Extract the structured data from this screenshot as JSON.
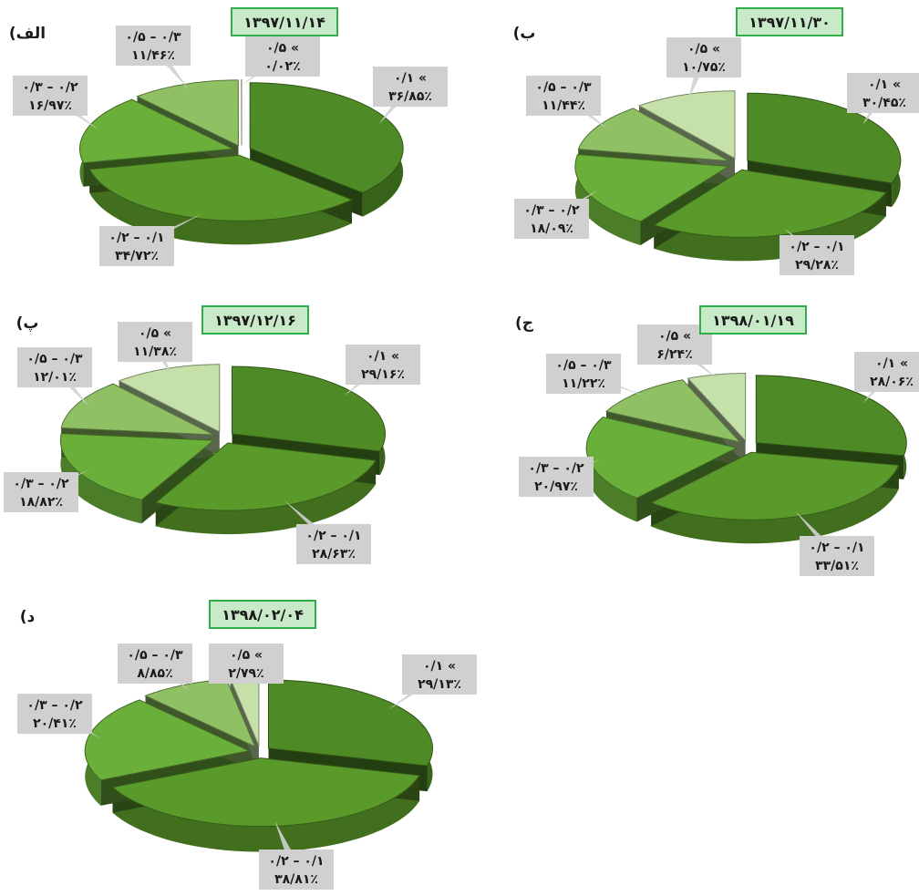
{
  "chart_data": [
    {
      "type": "pie",
      "panel_label": "(الف",
      "date": "۱۳۹۷/۱۱/۱۴",
      "slices": [
        {
          "range": "» ۰/۱",
          "percent": 36.85,
          "label": "۳۶/۸۵٪"
        },
        {
          "range": "۰/۱ – ۰/۲",
          "percent": 34.72,
          "label": "۳۴/۷۲٪"
        },
        {
          "range": "۰/۲ – ۰/۳",
          "percent": 16.97,
          "label": "۱۶/۹۷٪"
        },
        {
          "range": "۰/۳ – ۰/۵",
          "percent": 11.46,
          "label": "۱۱/۴۶٪"
        },
        {
          "range": "» ۰/۵",
          "percent": 0.02,
          "label": "۰/۰۲٪"
        }
      ]
    },
    {
      "type": "pie",
      "panel_label": "(ب",
      "date": "۱۳۹۷/۱۱/۳۰",
      "slices": [
        {
          "range": "» ۰/۱",
          "percent": 30.45,
          "label": "۳۰/۴۵٪"
        },
        {
          "range": "۰/۱ – ۰/۲",
          "percent": 29.28,
          "label": "۲۹/۲۸٪"
        },
        {
          "range": "۰/۲ – ۰/۳",
          "percent": 18.09,
          "label": "۱۸/۰۹٪"
        },
        {
          "range": "۰/۳ – ۰/۵",
          "percent": 11.44,
          "label": "۱۱/۴۴٪"
        },
        {
          "range": "» ۰/۵",
          "percent": 10.75,
          "label": "۱۰/۷۵٪"
        }
      ]
    },
    {
      "type": "pie",
      "panel_label": "(پ",
      "date": "۱۳۹۷/۱۲/۱۶",
      "slices": [
        {
          "range": "» ۰/۱",
          "percent": 29.16,
          "label": "۲۹/۱۶٪"
        },
        {
          "range": "۰/۱ – ۰/۲",
          "percent": 28.63,
          "label": "۲۸/۶۳٪"
        },
        {
          "range": "۰/۲ – ۰/۳",
          "percent": 18.82,
          "label": "۱۸/۸۲٪"
        },
        {
          "range": "۰/۳ – ۰/۵",
          "percent": 12.01,
          "label": "۱۲/۰۱٪"
        },
        {
          "range": "» ۰/۵",
          "percent": 11.38,
          "label": "۱۱/۳۸٪"
        }
      ]
    },
    {
      "type": "pie",
      "panel_label": "(ج",
      "date": "۱۳۹۸/۰۱/۱۹",
      "slices": [
        {
          "range": "» ۰/۱",
          "percent": 28.06,
          "label": "۲۸/۰۶٪"
        },
        {
          "range": "۰/۱ – ۰/۲",
          "percent": 33.51,
          "label": "۳۳/۵۱٪"
        },
        {
          "range": "۰/۲ – ۰/۳",
          "percent": 20.97,
          "label": "۲۰/۹۷٪"
        },
        {
          "range": "۰/۳ – ۰/۵",
          "percent": 11.22,
          "label": "۱۱/۲۲٪"
        },
        {
          "range": "» ۰/۵",
          "percent": 6.24,
          "label": "۶/۲۴٪"
        }
      ]
    },
    {
      "type": "pie",
      "panel_label": "(د",
      "date": "۱۳۹۸/۰۲/۰۴",
      "slices": [
        {
          "range": "» ۰/۱",
          "percent": 29.13,
          "label": "۲۹/۱۳٪"
        },
        {
          "range": "۰/۱ – ۰/۲",
          "percent": 38.81,
          "label": "۳۸/۸۱٪"
        },
        {
          "range": "۰/۲ – ۰/۳",
          "percent": 20.41,
          "label": "۲۰/۴۱٪"
        },
        {
          "range": "۰/۳ – ۰/۵",
          "percent": 8.85,
          "label": "۸/۸۵٪"
        },
        {
          "range": "» ۰/۵",
          "percent": 2.79,
          "label": "۲/۷۹٪"
        }
      ]
    }
  ],
  "colors": {
    "slices": [
      "#4e8a25",
      "#5a9a2a",
      "#6aaf3a",
      "#8fc063",
      "#c5e0a8"
    ],
    "label_box": "#d0d0d0",
    "date_box_fill": "#c8eac8",
    "date_box_border": "#2fae4a",
    "text": "#1a1a1a"
  }
}
